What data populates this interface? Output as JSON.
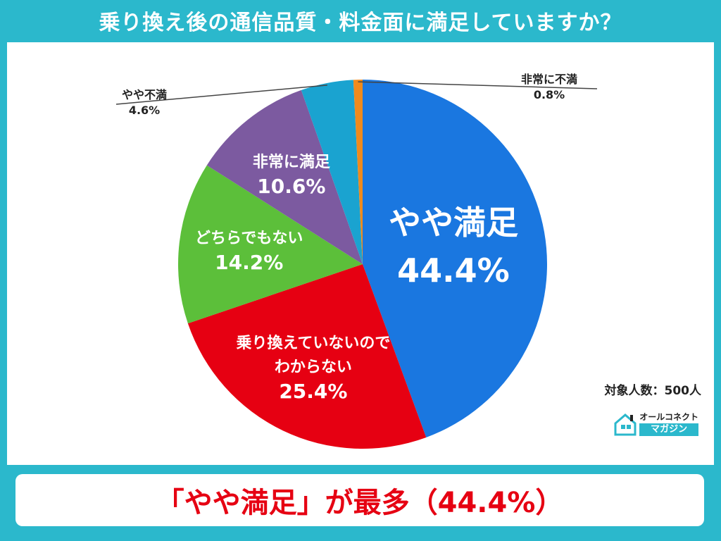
{
  "title": "乗り換え後の通信品質・料金面に満足していますか？",
  "chart_data": {
    "type": "pie",
    "start_angle_deg": 0,
    "direction": "clockwise",
    "slices": [
      {
        "name_lines": [
          "やや満足"
        ],
        "value": 44.4,
        "value_label": "44.4%",
        "color": "#1a77e0",
        "label_style": "inside-large"
      },
      {
        "name_lines": [
          "乗り換えていないので",
          "わからない"
        ],
        "value": 25.4,
        "value_label": "25.4%",
        "color": "#e60012",
        "label_style": "inside"
      },
      {
        "name_lines": [
          "どちらでもない"
        ],
        "value": 14.2,
        "value_label": "14.2%",
        "color": "#5cbf3a",
        "label_style": "inside"
      },
      {
        "name_lines": [
          "非常に満足"
        ],
        "value": 10.6,
        "value_label": "10.6%",
        "color": "#7c5aa0",
        "label_style": "inside"
      },
      {
        "name_lines": [
          "やや不満"
        ],
        "value": 4.6,
        "value_label": "4.6%",
        "color": "#1aa3d0",
        "label_style": "outside-left"
      },
      {
        "name_lines": [
          "非常に不満"
        ],
        "value": 0.8,
        "value_label": "0.8%",
        "color": "#f08a1c",
        "label_style": "outside-right"
      }
    ]
  },
  "sample_size": "対象人数：500人",
  "logo": {
    "top": "オールコネクト",
    "bottom": "マガジン"
  },
  "headline": "「やや満足」が最多（44.4%）"
}
